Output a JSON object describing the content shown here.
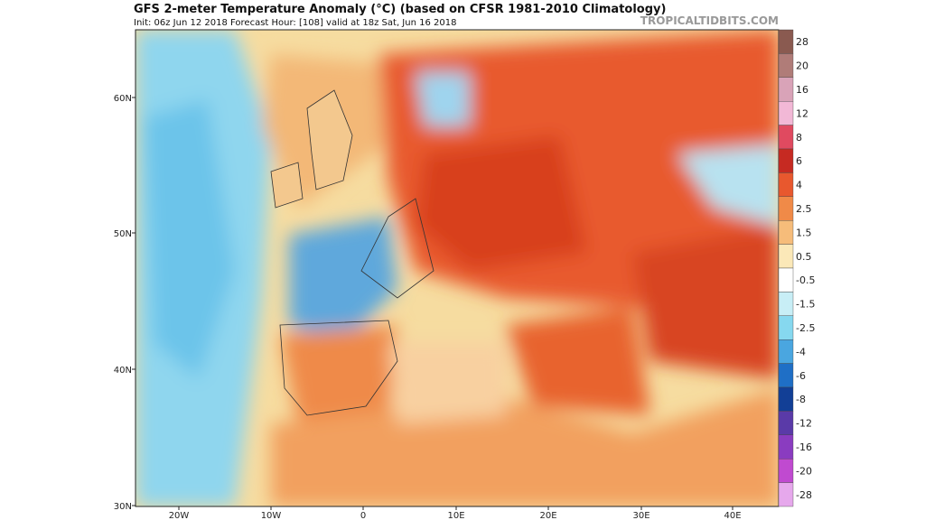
{
  "header": {
    "title": "GFS 2-meter Temperature Anomaly (°C) (based on CFSR 1981-2010 Climatology)",
    "subtitle": "Init: 06z Jun 12 2018   Forecast Hour: [108]   valid at 18z Sat, Jun 16 2018",
    "watermark": "TROPICALTIDBITS.COM"
  },
  "map": {
    "lat_labels": [
      "60N",
      "50N",
      "40N",
      "30N"
    ],
    "lon_labels": [
      "20W",
      "10W",
      "0",
      "10E",
      "20E",
      "30E",
      "40E"
    ]
  },
  "colorbar": {
    "labels": [
      "28",
      "20",
      "16",
      "12",
      "8",
      "6",
      "4",
      "2.5",
      "1.5",
      "0.5",
      "-0.5",
      "-1.5",
      "-2.5",
      "-4",
      "-6",
      "-8",
      "-12",
      "-16",
      "-20",
      "-28"
    ]
  }
}
